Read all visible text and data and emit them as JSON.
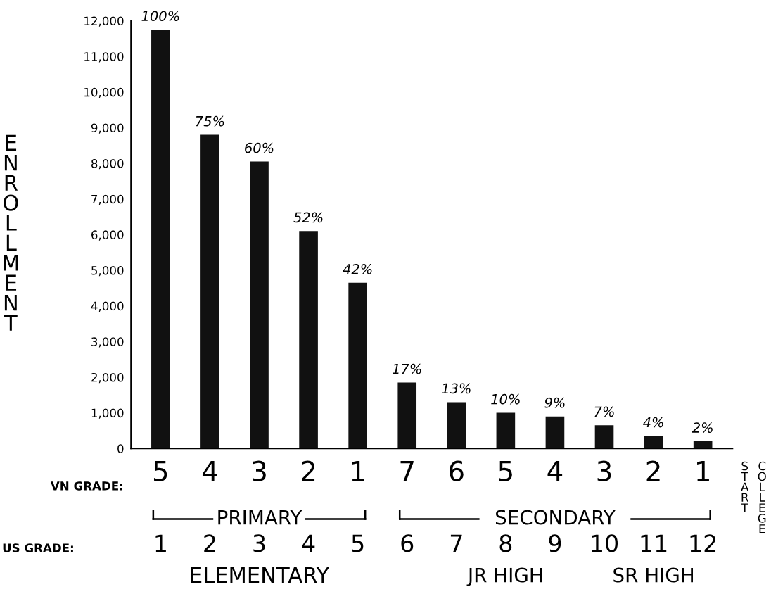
{
  "chart_data": {
    "type": "bar",
    "ylabel": "ENROLLMENT",
    "categories": [
      "5",
      "4",
      "3",
      "2",
      "1",
      "7",
      "6",
      "5",
      "4",
      "3",
      "2",
      "1"
    ],
    "values": [
      11750,
      8800,
      8050,
      6100,
      4650,
      1850,
      1300,
      1000,
      900,
      650,
      350,
      200
    ],
    "color": "#111111",
    "ylim": [
      0,
      12000
    ],
    "yticks": [
      {
        "value": 0,
        "label": "0"
      },
      {
        "value": 1000,
        "label": "1,000"
      },
      {
        "value": 2000,
        "label": "2,000"
      },
      {
        "value": 3000,
        "label": "3,000"
      },
      {
        "value": 4000,
        "label": "4,000"
      },
      {
        "value": 5000,
        "label": "5,000"
      },
      {
        "value": 6000,
        "label": "6,000"
      },
      {
        "value": 7000,
        "label": "7,000"
      },
      {
        "value": 8000,
        "label": "8,000"
      },
      {
        "value": 9000,
        "label": "9,000"
      },
      {
        "value": 10000,
        "label": "10,000"
      },
      {
        "value": 11000,
        "label": "11,000"
      },
      {
        "value": 12000,
        "label": "12,000"
      }
    ],
    "x2lim": [
      0.4,
      12.6
    ],
    "x2ticks": [
      1,
      2,
      3,
      4,
      5,
      6,
      7,
      8,
      9,
      10,
      11,
      12
    ],
    "x2label": "US GRADE:",
    "grid": false,
    "annotations": [
      "100%",
      "75%",
      "60%",
      "52%",
      "42%",
      "17%",
      "13%",
      "10%",
      "9%",
      "7%",
      "4%",
      "2%",
      "VN GRADE:",
      "PRIMARY",
      "SECONDARY",
      "ELEMENTARY",
      "JR HIGH",
      "SR HIGH",
      "START",
      "COLLEGE"
    ]
  }
}
